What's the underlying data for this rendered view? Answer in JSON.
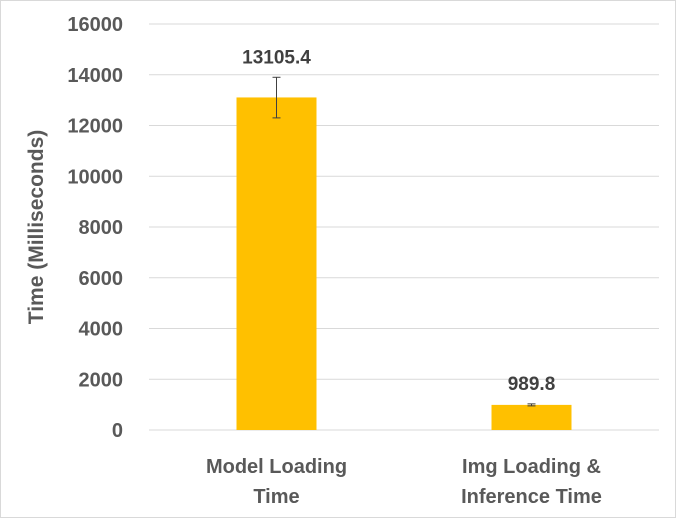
{
  "chart_data": {
    "type": "bar",
    "categories": [
      [
        "Model Loading",
        "Time"
      ],
      [
        "Img Loading &",
        "Inference Time"
      ]
    ],
    "values": [
      13105.4,
      989.8
    ],
    "error_bars": [
      {
        "low": 12300,
        "high": 13900
      },
      {
        "low": 950,
        "high": 1030
      }
    ],
    "data_labels": [
      "13105.4",
      "989.8"
    ],
    "title": "",
    "xlabel": "",
    "ylabel": "Time (Milliseconds)",
    "ylim": [
      0,
      16000
    ],
    "yticks": [
      0,
      2000,
      4000,
      6000,
      8000,
      10000,
      12000,
      14000,
      16000
    ],
    "grid": true,
    "legend": "none",
    "bar_color": "#FFC000",
    "grid_color": "#d9d9d9",
    "text_color": "#595959"
  }
}
